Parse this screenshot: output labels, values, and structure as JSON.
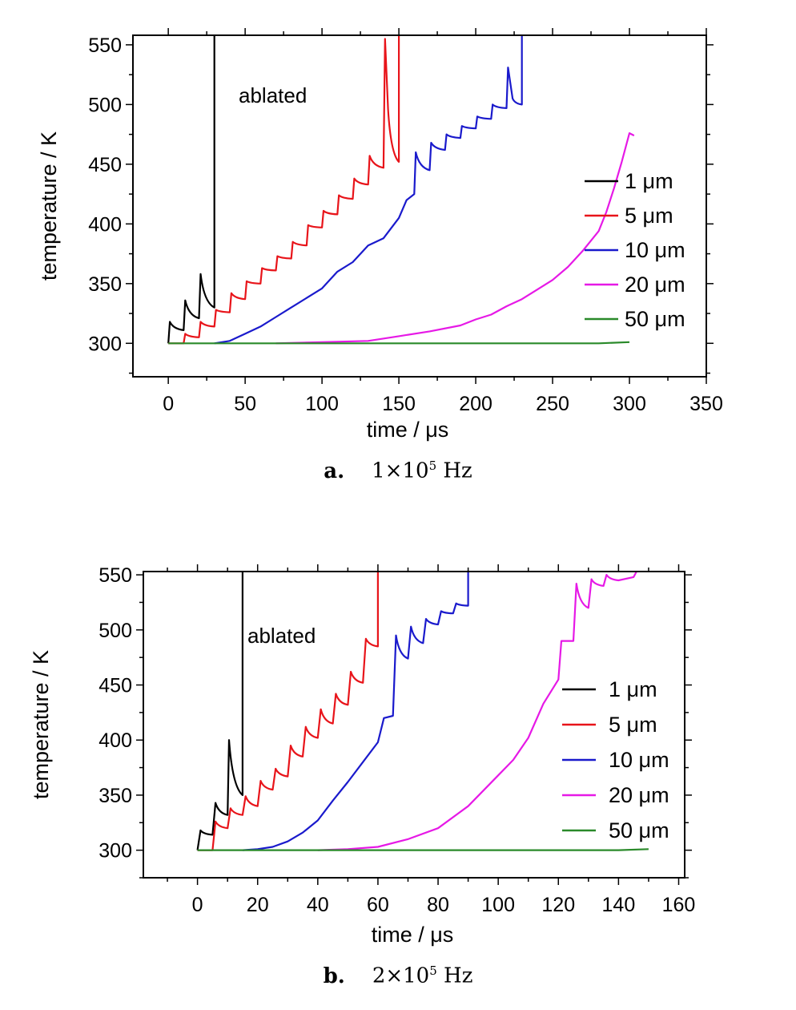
{
  "panels": [
    {
      "caption": {
        "letter": "a.",
        "base": "1×10",
        "exp": "5",
        "unit": "Hz"
      }
    },
    {
      "caption": {
        "letter": "b.",
        "base": "2×10",
        "exp": "5",
        "unit": "Hz"
      }
    }
  ],
  "chart_data": [
    {
      "type": "line",
      "title": "",
      "xlabel": "time / μs",
      "ylabel": "temperature / K",
      "xlim": [
        -23,
        350
      ],
      "ylim": [
        272,
        558
      ],
      "xticks": [
        0,
        50,
        100,
        150,
        200,
        250,
        300,
        350
      ],
      "yticks": [
        300,
        350,
        400,
        450,
        500,
        550
      ],
      "annotation": "ablated",
      "legend_position": "right",
      "series": [
        {
          "name": "1 μm",
          "color": "#000000",
          "pulse_period": 10,
          "points": [
            [
              0,
              300
            ],
            [
              1,
              318
            ],
            [
              10,
              311
            ],
            [
              11,
              336
            ],
            [
              20,
              321
            ],
            [
              21,
              358
            ],
            [
              30,
              330
            ],
            [
              30,
              558
            ]
          ]
        },
        {
          "name": "5 μm",
          "color": "#e8141a",
          "pulse_period": 10,
          "points": [
            [
              0,
              300
            ],
            [
              10,
              300
            ],
            [
              11,
              308
            ],
            [
              20,
              305
            ],
            [
              21,
              318
            ],
            [
              30,
              314
            ],
            [
              31,
              328
            ],
            [
              40,
              326
            ],
            [
              41,
              342
            ],
            [
              50,
              337
            ],
            [
              51,
              352
            ],
            [
              60,
              350
            ],
            [
              61,
              363
            ],
            [
              70,
              361
            ],
            [
              71,
              373
            ],
            [
              80,
              371
            ],
            [
              81,
              385
            ],
            [
              90,
              382
            ],
            [
              91,
              399
            ],
            [
              100,
              397
            ],
            [
              101,
              411
            ],
            [
              110,
              408
            ],
            [
              111,
              424
            ],
            [
              120,
              421
            ],
            [
              121,
              438
            ],
            [
              130,
              433
            ],
            [
              131,
              457
            ],
            [
              140,
              447
            ],
            [
              141,
              555
            ],
            [
              143,
              496
            ],
            [
              150,
              452
            ],
            [
              150,
              558
            ]
          ]
        },
        {
          "name": "10 μm",
          "color": "#1a1acc",
          "pulse_period": 10,
          "points": [
            [
              30,
              300
            ],
            [
              40,
              302
            ],
            [
              50,
              308
            ],
            [
              60,
              314
            ],
            [
              70,
              322
            ],
            [
              80,
              330
            ],
            [
              90,
              338
            ],
            [
              100,
              346
            ],
            [
              110,
              360
            ],
            [
              120,
              368
            ],
            [
              130,
              382
            ],
            [
              140,
              388
            ],
            [
              150,
              405
            ],
            [
              155,
              420
            ],
            [
              160,
              425
            ],
            [
              161,
              460
            ],
            [
              170,
              445
            ],
            [
              171,
              468
            ],
            [
              180,
              462
            ],
            [
              181,
              475
            ],
            [
              190,
              472
            ],
            [
              191,
              482
            ],
            [
              200,
              480
            ],
            [
              201,
              490
            ],
            [
              210,
              488
            ],
            [
              211,
              500
            ],
            [
              220,
              497
            ],
            [
              221,
              531
            ],
            [
              224,
              505
            ],
            [
              230,
              500
            ],
            [
              230,
              558
            ]
          ]
        },
        {
          "name": "20 μm",
          "color": "#e619e6",
          "pulse_period": 10,
          "points": [
            [
              70,
              300
            ],
            [
              130,
              302
            ],
            [
              150,
              306
            ],
            [
              170,
              310
            ],
            [
              190,
              315
            ],
            [
              200,
              320
            ],
            [
              210,
              324
            ],
            [
              220,
              331
            ],
            [
              230,
              337
            ],
            [
              240,
              345
            ],
            [
              250,
              353
            ],
            [
              260,
              364
            ],
            [
              270,
              378
            ],
            [
              280,
              394
            ],
            [
              285,
              410
            ],
            [
              290,
              430
            ],
            [
              295,
              452
            ],
            [
              300,
              476
            ],
            [
              303,
              474
            ]
          ]
        },
        {
          "name": "50 μm",
          "color": "#2a8a2a",
          "pulse_period": 10,
          "points": [
            [
              0,
              300
            ],
            [
              280,
              300
            ],
            [
              300,
              301
            ]
          ]
        }
      ]
    },
    {
      "type": "line",
      "title": "",
      "xlabel": "time / μs",
      "ylabel": "temperature / K",
      "xlim": [
        -18,
        162
      ],
      "ylim": [
        275,
        553
      ],
      "xticks": [
        0,
        20,
        40,
        60,
        80,
        100,
        120,
        140,
        160
      ],
      "yticks": [
        300,
        350,
        400,
        450,
        500,
        550
      ],
      "annotation": "ablated",
      "legend_position": "right",
      "series": [
        {
          "name": "1 μm",
          "color": "#000000",
          "pulse_period": 5,
          "points": [
            [
              0,
              300
            ],
            [
              1,
              318
            ],
            [
              5,
              314
            ],
            [
              6,
              343
            ],
            [
              10,
              332
            ],
            [
              10.5,
              400
            ],
            [
              15,
              350
            ],
            [
              15,
              553
            ]
          ]
        },
        {
          "name": "5 μm",
          "color": "#e8141a",
          "pulse_period": 5,
          "points": [
            [
              0,
              300
            ],
            [
              5,
              300
            ],
            [
              6,
              326
            ],
            [
              10,
              320
            ],
            [
              11,
              338
            ],
            [
              15,
              332
            ],
            [
              16,
              349
            ],
            [
              20,
              340
            ],
            [
              21,
              363
            ],
            [
              25,
              355
            ],
            [
              26,
              374
            ],
            [
              30,
              367
            ],
            [
              31,
              395
            ],
            [
              35,
              385
            ],
            [
              36,
              412
            ],
            [
              40,
              402
            ],
            [
              41,
              428
            ],
            [
              45,
              415
            ],
            [
              46,
              442
            ],
            [
              50,
              432
            ],
            [
              51,
              462
            ],
            [
              55,
              452
            ],
            [
              56,
              492
            ],
            [
              60,
              485
            ],
            [
              60,
              553
            ]
          ]
        },
        {
          "name": "10 μm",
          "color": "#1a1acc",
          "pulse_period": 5,
          "points": [
            [
              15,
              300
            ],
            [
              20,
              301
            ],
            [
              25,
              303
            ],
            [
              30,
              308
            ],
            [
              35,
              316
            ],
            [
              40,
              327
            ],
            [
              45,
              345
            ],
            [
              50,
              362
            ],
            [
              55,
              380
            ],
            [
              60,
              398
            ],
            [
              62,
              420
            ],
            [
              65,
              422
            ],
            [
              66,
              495
            ],
            [
              70,
              474
            ],
            [
              71,
              503
            ],
            [
              75,
              488
            ],
            [
              76,
              510
            ],
            [
              80,
              505
            ],
            [
              81,
              517
            ],
            [
              85,
              515
            ],
            [
              86,
              524
            ],
            [
              90,
              522
            ],
            [
              90,
              553
            ]
          ]
        },
        {
          "name": "20 μm",
          "color": "#e619e6",
          "pulse_period": 5,
          "points": [
            [
              40,
              300
            ],
            [
              50,
              301
            ],
            [
              60,
              303
            ],
            [
              70,
              310
            ],
            [
              80,
              320
            ],
            [
              90,
              340
            ],
            [
              100,
              368
            ],
            [
              105,
              382
            ],
            [
              110,
              402
            ],
            [
              115,
              433
            ],
            [
              120,
              455
            ],
            [
              121,
              490
            ],
            [
              125,
              490
            ],
            [
              126,
              542
            ],
            [
              130,
              520
            ],
            [
              131,
              546
            ],
            [
              135,
              540
            ],
            [
              136,
              550
            ],
            [
              140,
              545
            ],
            [
              145,
              548
            ],
            [
              146,
              553
            ]
          ]
        },
        {
          "name": "50 μm",
          "color": "#2a8a2a",
          "pulse_period": 5,
          "points": [
            [
              0,
              300
            ],
            [
              140,
              300
            ],
            [
              150,
              301
            ]
          ]
        }
      ]
    }
  ]
}
